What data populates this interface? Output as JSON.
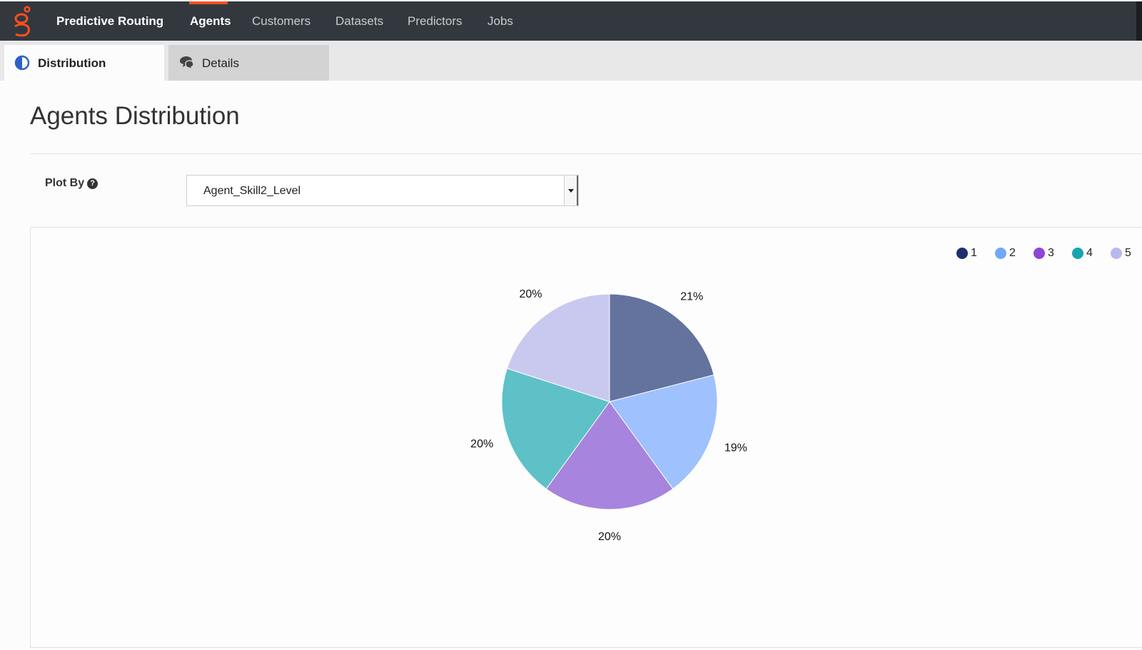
{
  "nav": {
    "brand": "Predictive Routing",
    "items": [
      {
        "label": "Agents",
        "active": true
      },
      {
        "label": "Customers",
        "active": false
      },
      {
        "label": "Datasets",
        "active": false
      },
      {
        "label": "Predictors",
        "active": false
      },
      {
        "label": "Jobs",
        "active": false
      }
    ]
  },
  "tabs": [
    {
      "label": "Distribution",
      "icon": "half-circle-icon",
      "active": true
    },
    {
      "label": "Details",
      "icon": "chat-bubbles-icon",
      "active": false
    }
  ],
  "page": {
    "title": "Agents Distribution"
  },
  "plot_by": {
    "label": "Plot By",
    "selected": "Agent_Skill2_Level"
  },
  "colors": {
    "accent": "#ff4f1f",
    "nav_bg": "#32383e"
  },
  "chart_data": {
    "type": "pie",
    "categories": [
      "1",
      "2",
      "3",
      "4",
      "5"
    ],
    "values": [
      21,
      19,
      20,
      20,
      20
    ],
    "labels": [
      "21%",
      "19%",
      "20%",
      "20%",
      "20%"
    ],
    "legend_colors": [
      "#1f2f6b",
      "#6fa8f6",
      "#8f45d8",
      "#16a5ad",
      "#b8b8ef"
    ],
    "slice_colors": [
      "#63739e",
      "#9fc1fd",
      "#a784dd",
      "#5ec1c7",
      "#c9c9f0"
    ],
    "legend_position": "top-right"
  }
}
